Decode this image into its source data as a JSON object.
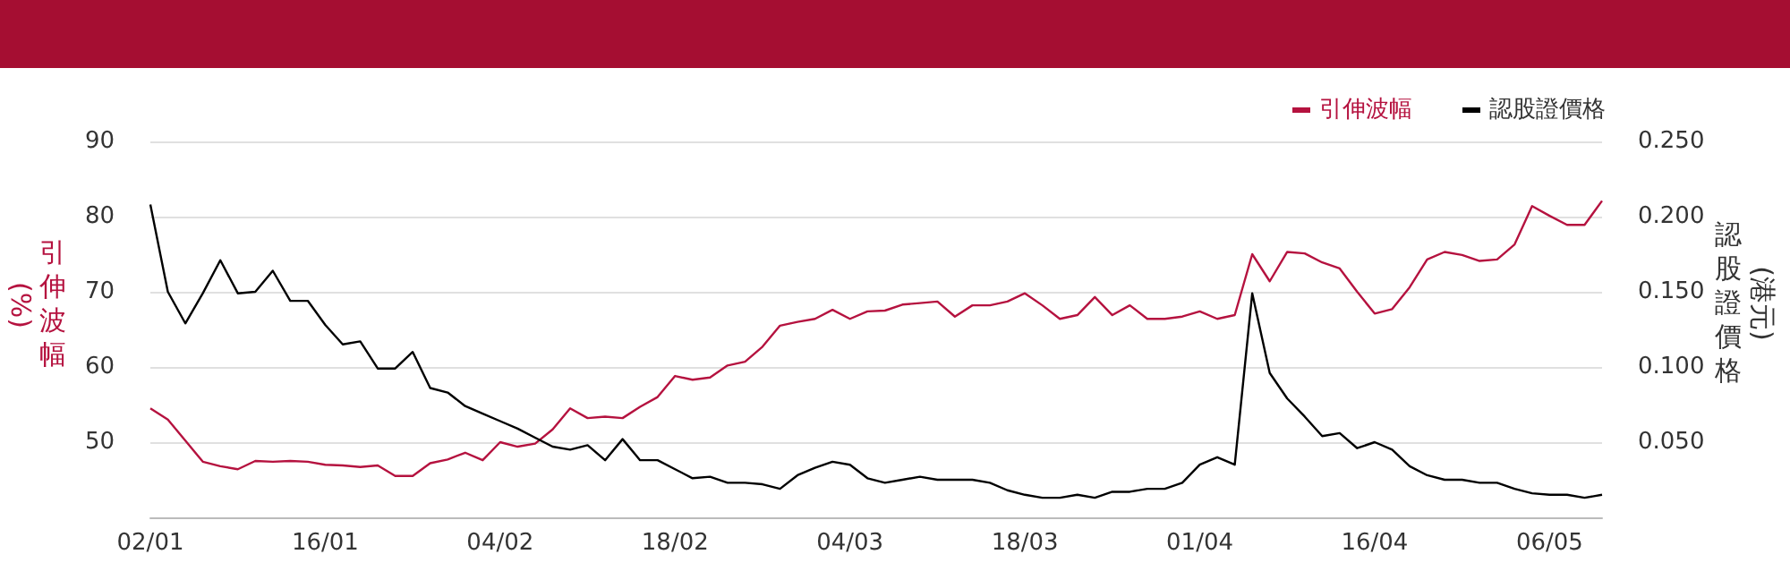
{
  "chart_data": {
    "type": "line",
    "categories": [
      "02/01",
      null,
      null,
      null,
      null,
      null,
      null,
      null,
      null,
      null,
      "16/01",
      null,
      null,
      null,
      null,
      null,
      null,
      null,
      null,
      null,
      "04/02",
      null,
      null,
      null,
      null,
      null,
      null,
      null,
      null,
      null,
      "18/02",
      null,
      null,
      null,
      null,
      null,
      null,
      null,
      null,
      null,
      "04/03",
      null,
      null,
      null,
      null,
      null,
      null,
      null,
      null,
      null,
      "18/03",
      null,
      null,
      null,
      null,
      null,
      null,
      null,
      null,
      null,
      "01/04",
      null,
      null,
      null,
      null,
      null,
      null,
      null,
      null,
      null,
      "16/04",
      null,
      null,
      null,
      null,
      null,
      null,
      null,
      null,
      null,
      "06/05",
      null,
      null,
      null
    ],
    "ylabel": "引伸波幅(%)",
    "y2label": "認股證價格(港元)",
    "ylim": [
      40,
      90
    ],
    "yticks": [
      {
        "value": 40,
        "label": null
      },
      50,
      60,
      70,
      80,
      90
    ],
    "y2lim": [
      0,
      0.25
    ],
    "y2ticks": [
      {
        "value": 0,
        "label": null
      },
      {
        "value": 0.05,
        "label": "0.050"
      },
      {
        "value": 0.1,
        "label": "0.100"
      },
      {
        "value": 0.15,
        "label": "0.150"
      },
      {
        "value": 0.2,
        "label": "0.200"
      },
      {
        "value": 0.25,
        "label": "0.250"
      }
    ],
    "grid": "y",
    "legend": "top right",
    "series": [
      {
        "name": "引伸波幅",
        "color": "#b5123f",
        "values": [
          54.5,
          53.0,
          50.2,
          47.4,
          46.8,
          46.4,
          47.5,
          47.4,
          47.5,
          47.4,
          47.0,
          46.9,
          46.7,
          46.9,
          45.5,
          45.5,
          47.2,
          47.7,
          48.6,
          47.6,
          50.0,
          49.4,
          49.8,
          51.7,
          54.5,
          53.2,
          53.4,
          53.2,
          54.7,
          56.0,
          58.8,
          58.3,
          58.6,
          60.2,
          60.7,
          62.7,
          65.5,
          66.0,
          66.4,
          67.6,
          66.4,
          67.4,
          67.5,
          68.3,
          68.5,
          68.7,
          66.7,
          68.2,
          68.2,
          68.7,
          69.8,
          68.2,
          66.4,
          66.9,
          69.3,
          66.9,
          68.2,
          66.4,
          66.4,
          66.7,
          67.4,
          66.4,
          66.9,
          75.0,
          71.4,
          75.3,
          75.1,
          73.9,
          73.1,
          70.0,
          67.1,
          67.7,
          70.6,
          74.3,
          75.3,
          74.9,
          74.1,
          74.3,
          76.3,
          81.4,
          80.1,
          78.9,
          78.9,
          82.1
        ]
      },
      {
        "name": "認股證價格",
        "color": "#000000",
        "axis": "y2",
        "values": [
          0.208,
          0.15,
          0.129,
          0.149,
          0.171,
          0.149,
          0.15,
          0.164,
          0.144,
          0.144,
          0.128,
          0.115,
          0.117,
          0.099,
          0.099,
          0.11,
          0.086,
          0.083,
          0.074,
          0.069,
          0.064,
          0.059,
          0.053,
          0.047,
          0.045,
          0.048,
          0.038,
          0.052,
          0.038,
          0.038,
          0.032,
          0.026,
          0.027,
          0.023,
          0.023,
          0.022,
          0.019,
          0.028,
          0.033,
          0.037,
          0.035,
          0.026,
          0.023,
          0.025,
          0.027,
          0.025,
          0.025,
          0.025,
          0.023,
          0.018,
          0.015,
          0.013,
          0.013,
          0.015,
          0.013,
          0.017,
          0.017,
          0.019,
          0.019,
          0.023,
          0.035,
          0.04,
          0.035,
          0.149,
          0.096,
          0.079,
          0.067,
          0.054,
          0.056,
          0.046,
          0.05,
          0.045,
          0.034,
          0.028,
          0.025,
          0.025,
          0.023,
          0.023,
          0.019,
          0.016,
          0.015,
          0.015,
          0.013,
          0.015
        ]
      }
    ]
  }
}
